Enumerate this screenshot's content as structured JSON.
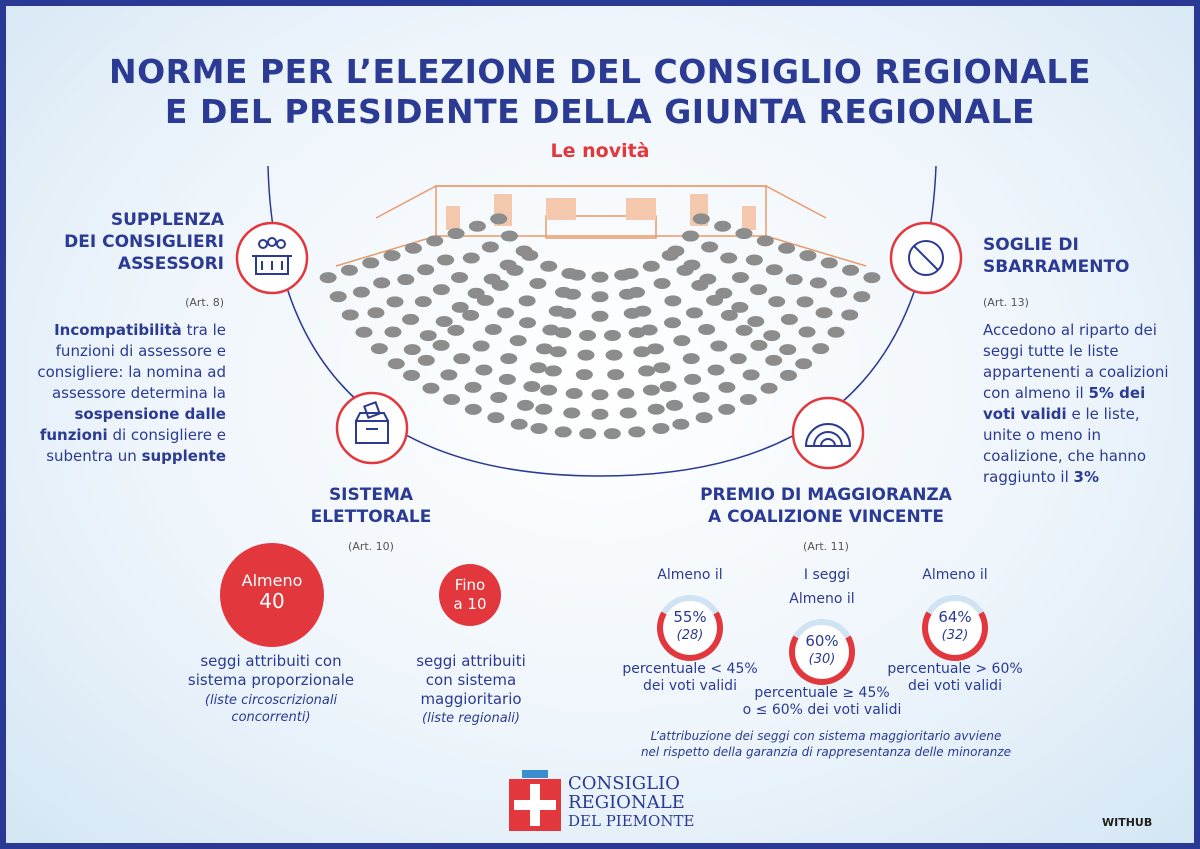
{
  "header": {
    "title_lines": [
      "NORME PER L’ELEZIONE DEL CONSIGLIO REGIONALE",
      "E DEL PRESIDENTE DELLA GIUNTA REGIONALE"
    ],
    "subtitle": "Le novità"
  },
  "supplenza": {
    "title_lines": [
      "SUPPLENZA",
      "DEI CONSIGLIERI",
      "ASSESSORI"
    ],
    "article": "(Art. 8)",
    "text": [
      "Incompatibilità",
      " tra le funzioni di assessore e consigliere: la nomina ad assessore determina la ",
      "sospensione dalle funzioni",
      " di consigliere e subentra un ",
      "supplente"
    ]
  },
  "soglie": {
    "title_lines": [
      "SOGLIE DI",
      "SBARRAMENTO"
    ],
    "article": "(Art. 13)",
    "text": [
      "Accedono al riparto dei seggi tutte le liste appartenenti a coalizioni con almeno il ",
      "5% dei voti validi",
      " e le liste, unite o meno in coalizione, che hanno raggiunto il ",
      "3%"
    ]
  },
  "sistema": {
    "title_lines": [
      "SISTEMA",
      "ELETTORALE"
    ],
    "article": "(Art. 10)",
    "items": [
      {
        "circle_lines": [
          "Almeno",
          "40"
        ],
        "text_lines": [
          "seggi attribuiti con",
          "sistema proporzionale"
        ],
        "note_lines": [
          "(liste circoscrizionali",
          "concorrenti)"
        ]
      },
      {
        "circle_lines": [
          "Fino",
          "a 10"
        ],
        "text_lines": [
          "seggi attribuiti",
          "con sistema",
          "maggioritario"
        ],
        "note_lines": [
          "(liste regionali)"
        ]
      }
    ]
  },
  "premio": {
    "title_lines": [
      "PREMIO DI MAGGIORANZA",
      "A COALIZIONE VINCENTE"
    ],
    "article": "(Art. 11)",
    "seats_label": "I seggi",
    "gauges": [
      {
        "label": "Almeno il",
        "percent": "55%",
        "seats": "(28)",
        "condition_lines": [
          "percentuale < 45%",
          "dei voti validi"
        ]
      },
      {
        "label": "Almeno il",
        "percent": "60%",
        "seats": "(30)",
        "condition_lines": [
          "percentuale ≥ 45%",
          "o ≤ 60% dei voti validi"
        ]
      },
      {
        "label": "Almeno il",
        "percent": "64%",
        "seats": "(32)",
        "condition_lines": [
          "percentuale > 60%",
          "dei voti validi"
        ]
      }
    ],
    "note_lines": [
      "L’attribuzione dei seggi con sistema maggioritario avviene",
      "nel rispetto della garanzia di rappresentanza delle minoranze"
    ]
  },
  "footer": {
    "logo_lines": [
      "CONSIGLIO",
      "REGIONALE",
      "DEL PIEMONTE"
    ],
    "credit": "WITHUB"
  }
}
